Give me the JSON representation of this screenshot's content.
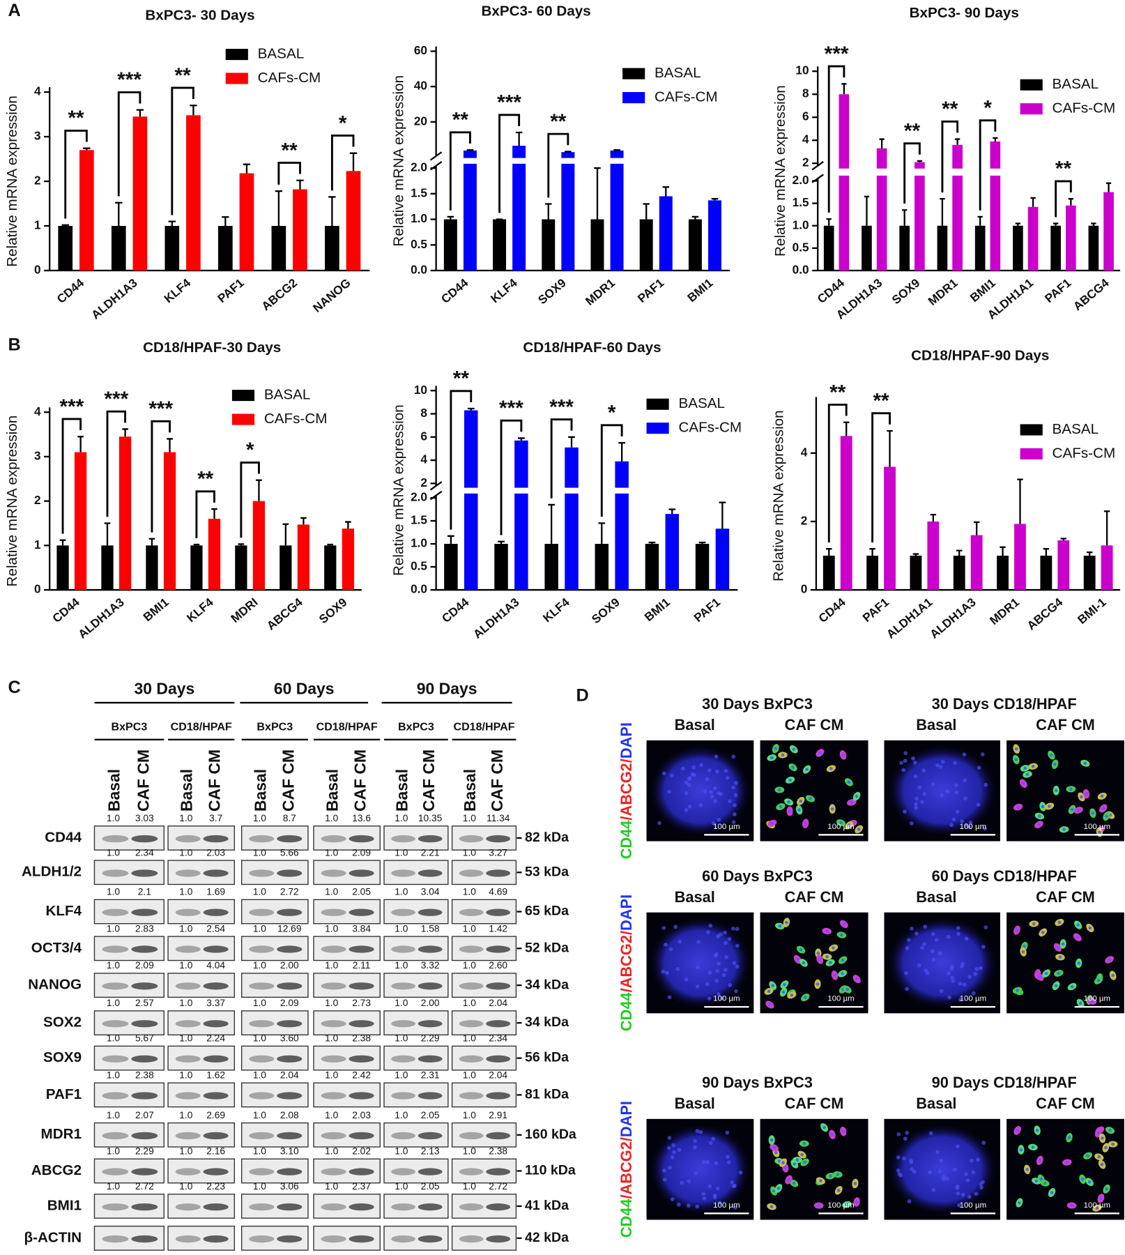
{
  "panel_labels": [
    "A",
    "B",
    "C",
    "D"
  ],
  "chart_data": [
    {
      "type": "bar",
      "title": "BxPC3- 30 Days",
      "y_label": "Relative mRNA expression",
      "categories": [
        "CD44",
        "ALDH1A3",
        "KLF4",
        "PAF1",
        "ABCG2",
        "NANOG"
      ],
      "series": [
        {
          "name": "BASAL",
          "color": "#000000",
          "values": [
            1,
            1,
            1,
            1,
            1,
            1
          ],
          "errors": [
            0.02,
            0.52,
            0.1,
            0.2,
            0.78,
            0.65
          ]
        },
        {
          "name": "CAFs-CM",
          "color": "#ff0000",
          "values": [
            2.7,
            3.45,
            3.48,
            2.18,
            1.82,
            2.23
          ],
          "errors": [
            0.04,
            0.15,
            0.22,
            0.2,
            0.2,
            0.4
          ]
        }
      ],
      "significance": [
        "**",
        "***",
        "**",
        null,
        "**",
        "*"
      ],
      "ylim": [
        0,
        4
      ],
      "yticks": [
        0,
        1,
        2,
        3,
        4
      ]
    },
    {
      "type": "bar",
      "title": "BxPC3- 60 Days",
      "y_label": "Relative mRNA expression",
      "categories": [
        "CD44",
        "KLF4",
        "SOX9",
        "MDR1",
        "PAF1",
        "BMI1"
      ],
      "series": [
        {
          "name": "BASAL",
          "color": "#000000",
          "values": [
            1,
            1,
            1,
            1,
            1,
            1
          ],
          "errors": [
            0.05,
            0,
            0.3,
            1.0,
            0.3,
            0.05
          ]
        },
        {
          "name": "CAFs-CM",
          "color": "#0000ff",
          "values": [
            3.8,
            6.5,
            2.9,
            3.8,
            1.45,
            1.37
          ],
          "errors": [
            0.3,
            7.5,
            0.3,
            0.3,
            0.18,
            0.03
          ]
        }
      ],
      "significance": [
        "**",
        "***",
        "**",
        null,
        null,
        null
      ],
      "ylim": [
        0,
        60
      ],
      "ybreak": 2,
      "yticks": [
        {
          "value": 0,
          "label": "0.0"
        },
        0.5,
        {
          "value": 1,
          "label": "1.0"
        },
        1.5,
        {
          "value": 2,
          "label": "2.0"
        }
      ],
      "yticks_upper": [
        20,
        40,
        60
      ]
    },
    {
      "type": "bar",
      "title": "BxPC3- 90 Days",
      "y_label": "Relative mRNA expression",
      "categories": [
        "CD44",
        "ALDH1A3",
        "SOX9",
        "MDR1",
        "BMI1",
        "ALDH1A1",
        "PAF1",
        "ABCG4"
      ],
      "series": [
        {
          "name": "BASAL",
          "color": "#000000",
          "values": [
            1,
            1,
            1,
            1,
            1,
            1,
            1,
            1
          ],
          "errors": [
            0.15,
            0.65,
            0.35,
            0.6,
            0.2,
            0.05,
            0.05,
            0.05
          ]
        },
        {
          "name": "CAFs-CM",
          "color": "#cc00cc",
          "values": [
            8.0,
            3.3,
            2.1,
            3.6,
            3.9,
            1.42,
            1.45,
            1.75
          ],
          "errors": [
            0.9,
            0.8,
            0.1,
            0.5,
            0.3,
            0.2,
            0.15,
            0.2
          ]
        }
      ],
      "significance": [
        "***",
        null,
        "**",
        "**",
        "*",
        null,
        "**",
        null
      ],
      "ylim": [
        0,
        10
      ],
      "ybreak": 2,
      "yticks": [
        {
          "value": 0,
          "label": "0.0"
        },
        0.5,
        {
          "value": 1,
          "label": "1.0"
        },
        1.5,
        {
          "value": 2,
          "label": "2.0"
        }
      ],
      "yticks_upper": [
        2,
        4,
        6,
        8,
        10
      ]
    },
    {
      "type": "bar",
      "title": "CD18/HPAF-30 Days",
      "y_label": "Relative mRNA expression",
      "categories": [
        "CD44",
        "ALDH1A3",
        "BMI1",
        "KLF4",
        "MDRI",
        "ABCG4",
        "SOX9"
      ],
      "series": [
        {
          "name": "BASAL",
          "color": "#000000",
          "values": [
            1,
            1,
            1,
            1,
            1,
            1,
            1
          ],
          "errors": [
            0.12,
            0.5,
            0.15,
            0.02,
            0.03,
            0.48,
            0.02
          ]
        },
        {
          "name": "CAFs-CM",
          "color": "#ff0000",
          "values": [
            3.1,
            3.45,
            3.1,
            1.6,
            2.0,
            1.47,
            1.38
          ],
          "errors": [
            0.35,
            0.17,
            0.3,
            0.22,
            0.47,
            0.15,
            0.15
          ]
        }
      ],
      "significance": [
        "***",
        "***",
        "***",
        "**",
        "*",
        null,
        null
      ],
      "ylim": [
        0,
        4
      ],
      "yticks": [
        0,
        1,
        2,
        3,
        4
      ]
    },
    {
      "type": "bar",
      "title": "CD18/HPAF-60 Days",
      "y_label": "Relative mRNA expression",
      "categories": [
        "CD44",
        "ALDH1A3",
        "KLF4",
        "SOX9",
        "BMI1",
        "PAF1"
      ],
      "series": [
        {
          "name": "BASAL",
          "color": "#000000",
          "values": [
            1,
            1,
            1,
            1,
            1,
            1
          ],
          "errors": [
            0.17,
            0.05,
            0.85,
            0.45,
            0.03,
            0.03
          ]
        },
        {
          "name": "CAFs-CM",
          "color": "#0000ff",
          "values": [
            8.3,
            5.7,
            5.1,
            3.9,
            1.65,
            1.33
          ],
          "errors": [
            0.15,
            0.2,
            0.9,
            1.6,
            0.1,
            0.57
          ]
        }
      ],
      "significance": [
        "**",
        "***",
        "***",
        "*",
        null,
        null
      ],
      "ylim": [
        0,
        10
      ],
      "ybreak": 2,
      "yticks": [
        {
          "value": 0,
          "label": "0.0"
        },
        0.5,
        {
          "value": 1,
          "label": "1.0"
        },
        1.5,
        {
          "value": 2,
          "label": "2.0"
        }
      ],
      "yticks_upper": [
        2,
        4,
        6,
        8,
        10
      ]
    },
    {
      "type": "bar",
      "title": "CD18/HPAF-90 Days",
      "y_label": "Relative mRNA expression",
      "categories": [
        "CD44",
        "PAF1",
        "ALDH1A1",
        "ALDH1A3",
        "MDR1",
        "ABCG4",
        "BMI-1"
      ],
      "series": [
        {
          "name": "BASAL",
          "color": "#000000",
          "values": [
            1,
            1,
            1,
            1,
            1,
            1,
            1
          ],
          "errors": [
            0.2,
            0.2,
            0.05,
            0.15,
            0.25,
            0.2,
            0.1
          ]
        },
        {
          "name": "CAFs-CM",
          "color": "#cc00cc",
          "values": [
            4.5,
            3.6,
            2.0,
            1.6,
            1.93,
            1.45,
            1.3
          ],
          "errors": [
            0.4,
            1.05,
            0.2,
            0.38,
            1.3,
            0.05,
            1.0
          ]
        }
      ],
      "significance": [
        "**",
        "**",
        null,
        null,
        null,
        null,
        null
      ],
      "ylim": [
        0,
        5.5
      ],
      "yticks": [
        0,
        2,
        4
      ]
    }
  ],
  "western_blot": {
    "periods": [
      {
        "label": "30 Days",
        "cell_lines": [
          "BxPC3",
          "CD18/HPAF"
        ]
      },
      {
        "label": "60 Days",
        "cell_lines": [
          "BxPC3",
          "CD18/HPAF"
        ]
      },
      {
        "label": "90 Days",
        "cell_lines": [
          "BxPC3",
          "CD18/HPAF"
        ]
      }
    ],
    "lanes": [
      "Basal",
      "CAF CM"
    ],
    "rows": [
      {
        "protein": "CD44",
        "values": [
          "1.0",
          "3.03",
          "1.0",
          "3.7",
          "1.0",
          "8.7",
          "1.0",
          "13.6",
          "1.0",
          "10.35",
          "1.0",
          "11.34"
        ],
        "size": "82 kDa"
      },
      {
        "protein": "ALDH1/2",
        "values": [
          "1.0",
          "2.34",
          "1.0",
          "2.03",
          "1.0",
          "5.66",
          "1.0",
          "2.09",
          "1.0",
          "2.21",
          "1.0",
          "3.27"
        ],
        "size": "53 kDa"
      },
      {
        "protein": "KLF4",
        "values": [
          "1.0",
          "2.1",
          "1.0",
          "1.69",
          "1.0",
          "2.72",
          "1.0",
          "2.05",
          "1.0",
          "3.04",
          "1.0",
          "4.69"
        ],
        "size": "65 kDa"
      },
      {
        "protein": "OCT3/4",
        "values": [
          "1.0",
          "2.83",
          "1.0",
          "2.54",
          "1.0",
          "12.69",
          "1.0",
          "3.84",
          "1.0",
          "1.58",
          "1.0",
          "1.42"
        ],
        "size": "52 kDa"
      },
      {
        "protein": "NANOG",
        "values": [
          "1.0",
          "2.09",
          "1.0",
          "4.04",
          "1.0",
          "2.00",
          "1.0",
          "2.11",
          "1.0",
          "3.32",
          "1.0",
          "2.60"
        ],
        "size": "34 kDa"
      },
      {
        "protein": "SOX2",
        "values": [
          "1.0",
          "2.57",
          "1.0",
          "3.37",
          "1.0",
          "2.09",
          "1.0",
          "2.73",
          "1.0",
          "2.00",
          "1.0",
          "2.04"
        ],
        "size": "34 kDa"
      },
      {
        "protein": "SOX9",
        "values": [
          "1.0",
          "5.67",
          "1.0",
          "2.24",
          "1.0",
          "3.60",
          "1.0",
          "2.38",
          "1.0",
          "2.29",
          "1.0",
          "2.34"
        ],
        "size": "56 kDa"
      },
      {
        "protein": "PAF1",
        "values": [
          "1.0",
          "2.38",
          "1.0",
          "1.62",
          "1.0",
          "2.04",
          "1.0",
          "2.42",
          "1.0",
          "2.31",
          "1.0",
          "2.04"
        ],
        "size": "81 kDa"
      },
      {
        "protein": "MDR1",
        "values": [
          "1.0",
          "2.07",
          "1.0",
          "2.69",
          "1.0",
          "2.08",
          "1.0",
          "2.03",
          "1.0",
          "2.05",
          "1.0",
          "2.91"
        ],
        "size": "160 kDa"
      },
      {
        "protein": "ABCG2",
        "values": [
          "1.0",
          "2.29",
          "1.0",
          "2.16",
          "1.0",
          "3.10",
          "1.0",
          "2.02",
          "1.0",
          "2.13",
          "1.0",
          "2.38"
        ],
        "size": "110 kDa"
      },
      {
        "protein": "BMI1",
        "values": [
          "1.0",
          "2.72",
          "1.0",
          "2.23",
          "1.0",
          "3.06",
          "1.0",
          "2.37",
          "1.0",
          "2.05",
          "1.0",
          "2.72"
        ],
        "size": "41 kDa"
      },
      {
        "protein": "β-ACTIN",
        "values": [],
        "size": "42 kDa"
      }
    ]
  },
  "immunofluorescence": {
    "stain": [
      {
        "text": "CD44",
        "color": "#22cc22"
      },
      {
        "text": "/ABCG2/",
        "color": "#ee2222"
      },
      {
        "text": "DAPI",
        "color": "#2233ee"
      }
    ],
    "panels": [
      {
        "title": "30 Days BxPC3",
        "conditions": [
          "Basal",
          "CAF CM"
        ],
        "scale_bar": "100 µm"
      },
      {
        "title": "30 Days CD18/HPAF",
        "conditions": [
          "Basal",
          "CAF CM"
        ],
        "scale_bar": "100 µm"
      },
      {
        "title": "60 Days BxPC3",
        "conditions": [
          "Basal",
          "CAF CM"
        ],
        "scale_bar": "100 µm"
      },
      {
        "title": "60 Days CD18/HPAF",
        "conditions": [
          "Basal",
          "CAF CM"
        ],
        "scale_bar": "100 µm"
      },
      {
        "title": "90 Days BxPC3",
        "conditions": [
          "Basal",
          "CAF CM"
        ],
        "scale_bar": "100 µm"
      },
      {
        "title": "90 Days CD18/HPAF",
        "conditions": [
          "Basal",
          "CAF CM"
        ],
        "scale_bar": "100 µm"
      }
    ]
  }
}
